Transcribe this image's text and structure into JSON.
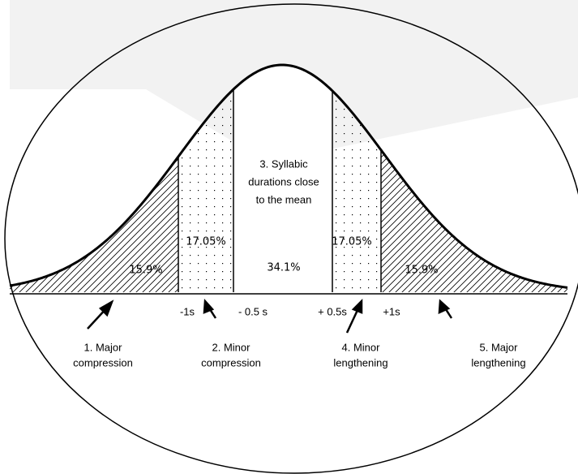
{
  "regions": [
    "15.9%",
    "17.05%",
    "34.1%",
    "17.05%",
    "15.9%"
  ],
  "center_text": [
    "3. Syllabic",
    "durations close",
    "to the mean"
  ],
  "axis_labels": [
    "-1s",
    "- 0.5 s",
    "+ 0.5s",
    "+1s"
  ],
  "categories": [
    [
      "1. Major",
      "compression"
    ],
    [
      "2. Minor",
      "compression"
    ],
    [
      "4. Minor",
      "lengthening"
    ],
    [
      "5. Major",
      "lengthening"
    ]
  ]
}
